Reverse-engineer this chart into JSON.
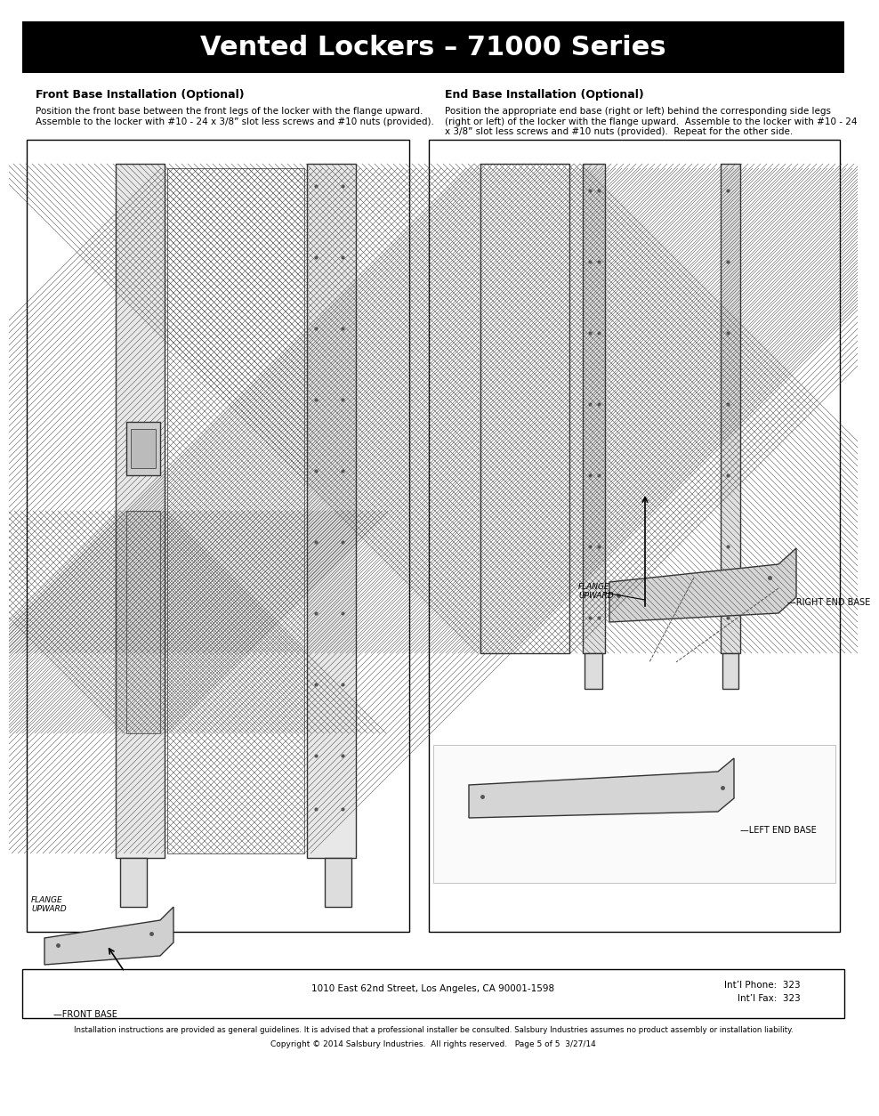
{
  "title": "Vented Lockers – 71000 Series",
  "title_bg": "#000000",
  "title_color": "#ffffff",
  "title_fontsize": 22,
  "page_bg": "#ffffff",
  "border_color": "#000000",
  "section1_heading": "Front Base Installation (Optional)",
  "section2_heading": "End Base Installation (Optional)",
  "section1_body": "Position the front base between the front legs of the locker with the flange upward.\nAssemble to the locker with #10 - 24 x 3/8” slot less screws and #10 nuts (provided).",
  "section2_body": "Position the appropriate end base (right or left) behind the corresponding side legs\n(right or left) of the locker with the flange upward.  Assemble to the locker with #10 - 24\nx 3/8” slot less screws and #10 nuts (provided).  Repeat for the other side.",
  "footer_address": "1010 East 62nd Street, Los Angeles, CA 90001-1598",
  "footer_phone": "Int’l Phone:  323",
  "footer_fax": "Int’l Fax:  323",
  "footer_disclaimer": "Installation instructions are provided as general guidelines. It is advised that a professional installer be consulted. Salsbury Industries assumes no product assembly or installation liability.",
  "footer_copyright": "Copyright © 2014 Salsbury Industries.  All rights reserved.   Page 5 of 5  3/27/14",
  "label_flange_upward_left": "FLANGE\nUPWARD",
  "label_front_base": "FRONT BASE",
  "label_flange_upward_right": "FLANGE\nUPWARD",
  "label_right_end_base": "RIGHT END BASE",
  "label_left_end_base": "LEFT END BASE"
}
